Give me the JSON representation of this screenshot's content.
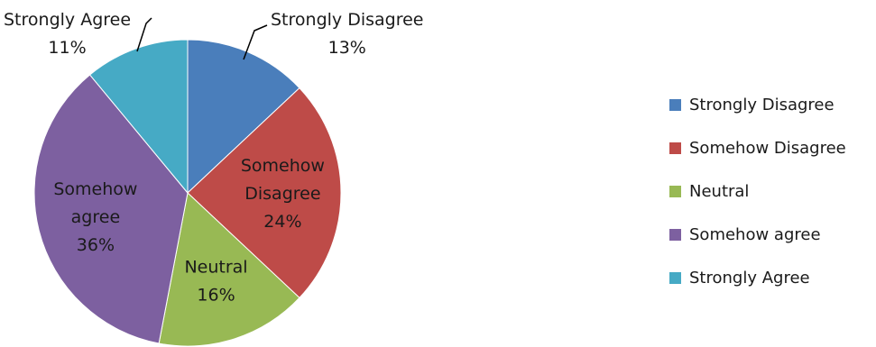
{
  "chart_data": {
    "type": "pie",
    "title": "",
    "categories": [
      "Strongly Disagree",
      "Somehow Disagree",
      "Neutral",
      "Somehow agree",
      "Strongly Agree"
    ],
    "values": [
      13,
      24,
      16,
      36,
      11
    ],
    "unit": "%",
    "colors": [
      "#4A7EBB",
      "#BE4B48",
      "#98B954",
      "#7D60A0",
      "#46AAC5"
    ],
    "slice_labels": [
      [
        "Strongly Disagree",
        "13%"
      ],
      [
        "Somehow",
        "Disagree",
        "24%"
      ],
      [
        "Neutral",
        "16%"
      ],
      [
        "Somehow",
        "agree",
        "36%"
      ],
      [
        "Strongly Agree",
        "11%"
      ]
    ],
    "legend": {
      "position": "right",
      "items": [
        "Strongly Disagree",
        "Somehow Disagree",
        "Neutral",
        "Somehow agree",
        "Strongly Agree"
      ]
    }
  }
}
